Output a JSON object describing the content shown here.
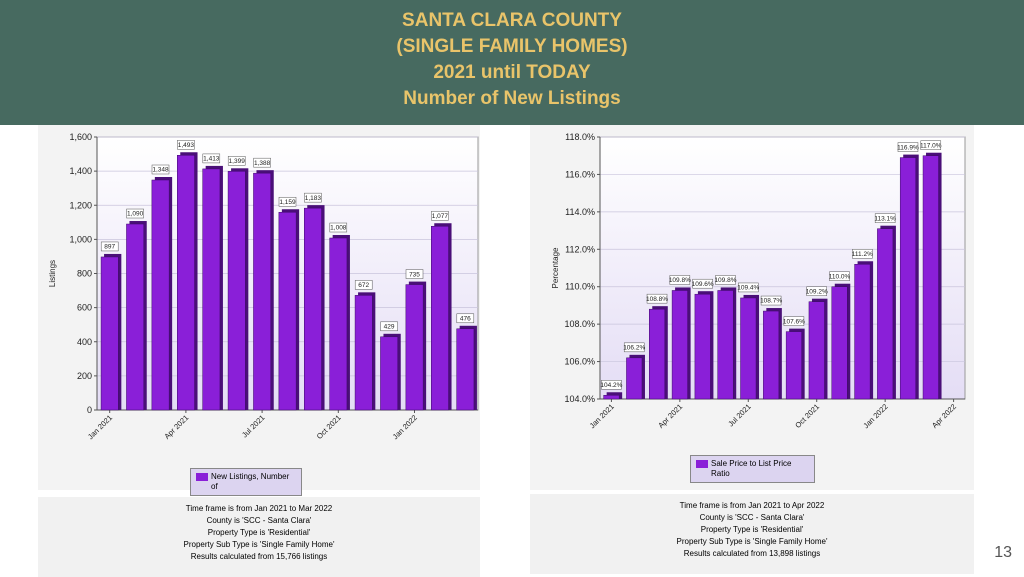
{
  "header": {
    "title_lines": [
      "SANTA CLARA COUNTY",
      "(SINGLE FAMILY HOMES)",
      "2021 until TODAY",
      "Number of New Listings"
    ]
  },
  "chart_data": [
    {
      "type": "bar",
      "y_label": "Listings",
      "categories": [
        "Jan 2021",
        null,
        null,
        "Apr 2021",
        null,
        null,
        "Jul 2021",
        null,
        null,
        "Oct 2021",
        null,
        null,
        "Jan 2022",
        null,
        null
      ],
      "series": [
        {
          "name": "New Listings, Number of",
          "color": "#8a1fd8",
          "values": [
            897,
            1090,
            1348,
            1493,
            1413,
            1399,
            1388,
            1159,
            1183,
            1008,
            672,
            429,
            735,
            1077,
            476
          ],
          "value_labels": [
            "897",
            "1,090",
            "1,348",
            "1,493",
            "1,413",
            "1,399",
            "1,388",
            "1,159",
            "1,183",
            "1,008",
            "672",
            "429",
            "735",
            "1,077",
            "476"
          ]
        }
      ],
      "ylim": [
        0,
        1600
      ],
      "yticks": [
        0,
        200,
        400,
        600,
        800,
        {
          "value": 1000,
          "label": "1,000"
        },
        {
          "value": 1200,
          "label": "1,200"
        },
        {
          "value": 1400,
          "label": "1,400"
        },
        {
          "value": 1600,
          "label": "1,600"
        }
      ],
      "grid": true
    },
    {
      "type": "bar",
      "y_label": "Percentage",
      "categories": [
        "Jan 2021",
        null,
        null,
        "Apr 2021",
        null,
        null,
        "Jul 2021",
        null,
        null,
        "Oct 2021",
        null,
        null,
        "Jan 2022",
        null,
        null,
        "Apr 2022"
      ],
      "series": [
        {
          "name": "Sale Price to List Price Ratio",
          "color": "#8a1fd8",
          "values": [
            104.2,
            106.2,
            108.8,
            109.8,
            109.6,
            109.8,
            109.4,
            108.7,
            107.6,
            109.2,
            110.0,
            111.2,
            113.1,
            116.9,
            117.0,
            null
          ],
          "value_labels": [
            "104.2%",
            "106.2%",
            "108.8%",
            "109.8%",
            "109.6%",
            "109.8%",
            "109.4%",
            "108.7%",
            "107.6%",
            "109.2%",
            "110.0%",
            "111.2%",
            "113.1%",
            "116.9%",
            "117.0%",
            null
          ]
        }
      ],
      "ylim": [
        104,
        118
      ],
      "yticks": [
        {
          "value": 104,
          "label": "104.0%"
        },
        {
          "value": 106,
          "label": "106.0%"
        },
        {
          "value": 108,
          "label": "108.0%"
        },
        {
          "value": 110,
          "label": "110.0%"
        },
        {
          "value": 112,
          "label": "112.0%"
        },
        {
          "value": 114,
          "label": "114.0%"
        },
        {
          "value": 116,
          "label": "116.0%"
        },
        {
          "value": 118,
          "label": "118.0%"
        }
      ],
      "grid": true
    }
  ],
  "footnotes": [
    [
      "Time frame is from Jan 2021 to Mar 2022",
      "County is 'SCC - Santa Clara'",
      "Property Type is 'Residential'",
      "Property Sub Type is 'Single Family Home'",
      "Results calculated from 15,766 listings"
    ],
    [
      "Time frame is from Jan 2021 to Apr 2022",
      "County is 'SCC - Santa Clara'",
      "Property Type is 'Residential'",
      "Property Sub Type is 'Single Family Home'",
      "Results calculated from 13,898 listings"
    ]
  ],
  "page_number": "13"
}
